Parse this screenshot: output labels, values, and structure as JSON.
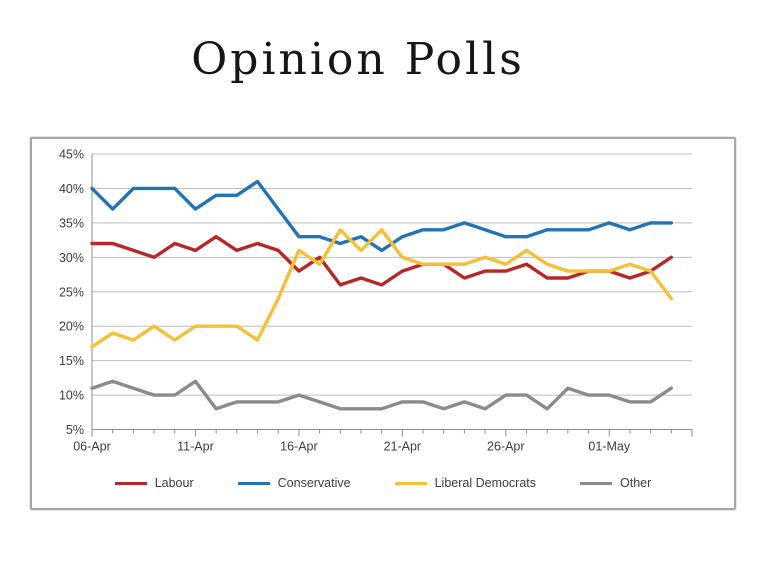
{
  "slide": {
    "title": "Opinion Polls"
  },
  "chart_data": {
    "type": "line",
    "title": "Opinion Polls",
    "xlabel": "",
    "ylabel": "",
    "ylim": [
      5,
      45
    ],
    "y_tick_step": 5,
    "y_tick_labels": [
      "5%",
      "10%",
      "15%",
      "20%",
      "25%",
      "30%",
      "35%",
      "40%",
      "45%"
    ],
    "x_tick_labels": [
      "06-Apr",
      "11-Apr",
      "16-Apr",
      "21-Apr",
      "26-Apr",
      "01-May"
    ],
    "x_tick_label_positions": [
      0,
      5,
      10,
      15,
      20,
      25
    ],
    "x_slots": 29,
    "n_points": 29,
    "grid": "horizontal",
    "legend_position": "bottom",
    "series": [
      {
        "name": "Labour",
        "color": "#b82727",
        "values": [
          32,
          32,
          31,
          30,
          32,
          31,
          33,
          31,
          32,
          31,
          28,
          30,
          26,
          27,
          26,
          28,
          29,
          29,
          27,
          28,
          28,
          29,
          27,
          27,
          28,
          28,
          27,
          28,
          30
        ]
      },
      {
        "name": "Conservative",
        "color": "#2374b5",
        "values": [
          40,
          37,
          40,
          40,
          40,
          37,
          39,
          39,
          41,
          37,
          33,
          33,
          32,
          33,
          31,
          33,
          34,
          34,
          35,
          34,
          33,
          33,
          34,
          34,
          34,
          35,
          34,
          35,
          35
        ]
      },
      {
        "name": "Liberal Democrats",
        "color": "#f6c036",
        "values": [
          17,
          19,
          18,
          20,
          18,
          20,
          20,
          20,
          18,
          24,
          31,
          29,
          34,
          31,
          34,
          30,
          29,
          29,
          29,
          30,
          29,
          31,
          29,
          28,
          28,
          28,
          29,
          28,
          24
        ]
      },
      {
        "name": "Other",
        "color": "#8b8b8b",
        "values": [
          11,
          12,
          11,
          10,
          10,
          12,
          8,
          9,
          9,
          9,
          10,
          9,
          8,
          8,
          8,
          9,
          9,
          8,
          9,
          8,
          10,
          10,
          8,
          11,
          10,
          10,
          9,
          9,
          11
        ]
      }
    ],
    "axis_color": "#8f8f8f",
    "gridline_color": "#bdbdbd",
    "tick_label_color": "#3d3d3d"
  }
}
